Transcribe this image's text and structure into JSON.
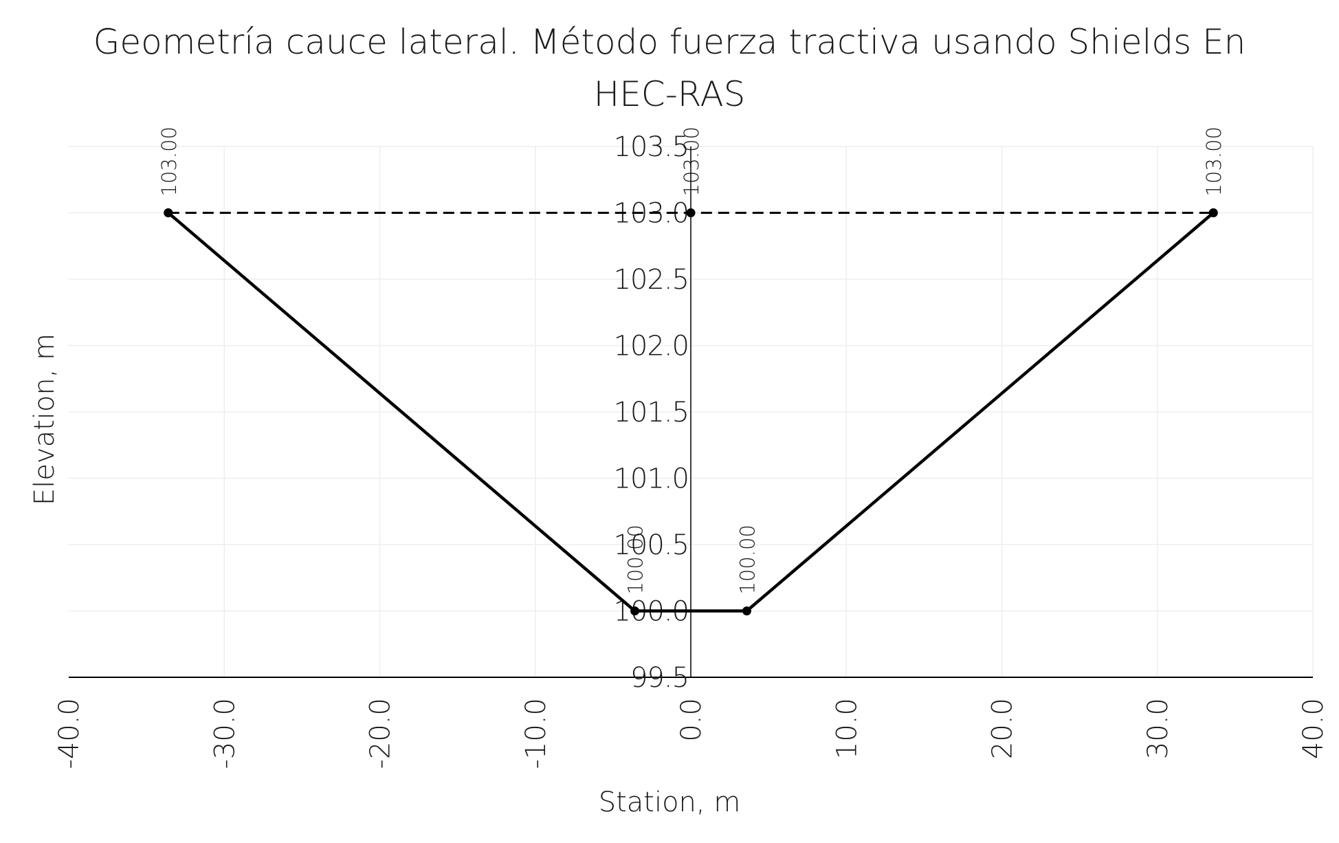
{
  "chart_data": {
    "type": "line",
    "title_line1": "Geometría cauce lateral. Método fuerza tractiva usando Shields En",
    "title_line2": "HEC-RAS",
    "xlabel": "Station, m",
    "ylabel": "Elevation, m",
    "xlim": [
      -40,
      40
    ],
    "ylim": [
      99.5,
      103.5
    ],
    "x_ticks": [
      "-40.0",
      "-30.0",
      "-20.0",
      "-10.0",
      "0.0",
      "10.0",
      "20.0",
      "30.0",
      "40.0"
    ],
    "y_ticks": [
      "99.5",
      "100.0",
      "100.5",
      "101.0",
      "101.5",
      "102.0",
      "102.5",
      "103.0",
      "103.5"
    ],
    "grid": true,
    "series": [
      {
        "style": "solid",
        "color": "#000000",
        "x": [
          -33.6,
          -3.6,
          3.6,
          33.6
        ],
        "y": [
          103.0,
          100.0,
          100.0,
          103.0
        ],
        "labels": [
          "103.00",
          "100.00",
          "100.00",
          "103.00"
        ]
      },
      {
        "style": "dashed",
        "color": "#000000",
        "x": [
          -33.6,
          0.0,
          33.6
        ],
        "y": [
          103.0,
          103.0,
          103.0
        ],
        "labels": [
          "",
          "103.00",
          ""
        ]
      }
    ]
  }
}
